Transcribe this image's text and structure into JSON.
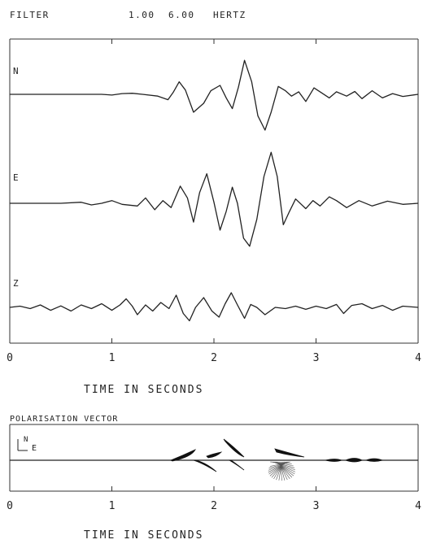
{
  "header": {
    "filter_label": "FILTER",
    "low_freq": "1.00",
    "high_freq": "6.00",
    "unit": "HERTZ"
  },
  "chart_data": [
    {
      "type": "line",
      "title": "",
      "xlabel": "TIME IN SECONDS",
      "ylabel": "",
      "xlim": [
        0,
        4
      ],
      "x_ticks": [
        "0",
        "1",
        "2",
        "3",
        "4"
      ],
      "grid": false,
      "series": [
        {
          "name": "N",
          "color": "#222222",
          "points": [
            [
              0.0,
              0.0
            ],
            [
              0.4,
              0.0
            ],
            [
              0.9,
              0.0
            ],
            [
              1.0,
              -0.02
            ],
            [
              1.1,
              0.02
            ],
            [
              1.2,
              0.03
            ],
            [
              1.3,
              0.0
            ],
            [
              1.45,
              -0.05
            ],
            [
              1.55,
              -0.15
            ],
            [
              1.6,
              0.05
            ],
            [
              1.66,
              0.35
            ],
            [
              1.72,
              0.12
            ],
            [
              1.8,
              -0.5
            ],
            [
              1.9,
              -0.25
            ],
            [
              1.97,
              0.1
            ],
            [
              2.06,
              0.25
            ],
            [
              2.12,
              -0.1
            ],
            [
              2.18,
              -0.4
            ],
            [
              2.24,
              0.2
            ],
            [
              2.3,
              0.95
            ],
            [
              2.37,
              0.35
            ],
            [
              2.43,
              -0.6
            ],
            [
              2.5,
              -1.0
            ],
            [
              2.56,
              -0.5
            ],
            [
              2.63,
              0.22
            ],
            [
              2.7,
              0.1
            ],
            [
              2.76,
              -0.05
            ],
            [
              2.83,
              0.07
            ],
            [
              2.9,
              -0.2
            ],
            [
              2.98,
              0.18
            ],
            [
              3.05,
              0.05
            ],
            [
              3.13,
              -0.1
            ],
            [
              3.2,
              0.07
            ],
            [
              3.3,
              -0.05
            ],
            [
              3.38,
              0.08
            ],
            [
              3.45,
              -0.12
            ],
            [
              3.55,
              0.1
            ],
            [
              3.65,
              -0.1
            ],
            [
              3.75,
              0.02
            ],
            [
              3.85,
              -0.06
            ],
            [
              4.0,
              0.0
            ]
          ]
        },
        {
          "name": "E",
          "color": "#222222",
          "points": [
            [
              0.0,
              0.0
            ],
            [
              0.5,
              0.0
            ],
            [
              0.7,
              0.02
            ],
            [
              0.8,
              -0.03
            ],
            [
              0.9,
              0.0
            ],
            [
              1.0,
              0.05
            ],
            [
              1.1,
              -0.02
            ],
            [
              1.25,
              -0.05
            ],
            [
              1.33,
              0.1
            ],
            [
              1.42,
              -0.12
            ],
            [
              1.5,
              0.05
            ],
            [
              1.58,
              -0.08
            ],
            [
              1.67,
              0.32
            ],
            [
              1.74,
              0.1
            ],
            [
              1.8,
              -0.35
            ],
            [
              1.86,
              0.2
            ],
            [
              1.93,
              0.55
            ],
            [
              2.0,
              0.02
            ],
            [
              2.06,
              -0.5
            ],
            [
              2.12,
              -0.15
            ],
            [
              2.18,
              0.3
            ],
            [
              2.23,
              0.0
            ],
            [
              2.29,
              -0.65
            ],
            [
              2.35,
              -0.8
            ],
            [
              2.42,
              -0.3
            ],
            [
              2.49,
              0.5
            ],
            [
              2.56,
              0.95
            ],
            [
              2.62,
              0.5
            ],
            [
              2.68,
              -0.4
            ],
            [
              2.74,
              -0.15
            ],
            [
              2.8,
              0.08
            ],
            [
              2.9,
              -0.1
            ],
            [
              2.97,
              0.05
            ],
            [
              3.04,
              -0.05
            ],
            [
              3.13,
              0.12
            ],
            [
              3.2,
              0.05
            ],
            [
              3.3,
              -0.08
            ],
            [
              3.42,
              0.05
            ],
            [
              3.55,
              -0.05
            ],
            [
              3.7,
              0.04
            ],
            [
              3.85,
              -0.02
            ],
            [
              4.0,
              0.0
            ]
          ]
        },
        {
          "name": "Z",
          "color": "#222222",
          "points": [
            [
              0.0,
              0.0
            ],
            [
              0.1,
              0.05
            ],
            [
              0.2,
              -0.05
            ],
            [
              0.3,
              0.1
            ],
            [
              0.4,
              -0.12
            ],
            [
              0.5,
              0.06
            ],
            [
              0.6,
              -0.15
            ],
            [
              0.7,
              0.1
            ],
            [
              0.8,
              -0.05
            ],
            [
              0.9,
              0.15
            ],
            [
              1.0,
              -0.12
            ],
            [
              1.08,
              0.1
            ],
            [
              1.14,
              0.35
            ],
            [
              1.2,
              0.05
            ],
            [
              1.25,
              -0.3
            ],
            [
              1.33,
              0.1
            ],
            [
              1.4,
              -0.15
            ],
            [
              1.48,
              0.2
            ],
            [
              1.56,
              -0.05
            ],
            [
              1.63,
              0.5
            ],
            [
              1.7,
              -0.25
            ],
            [
              1.76,
              -0.55
            ],
            [
              1.82,
              0.0
            ],
            [
              1.9,
              0.4
            ],
            [
              1.98,
              -0.15
            ],
            [
              2.05,
              -0.4
            ],
            [
              2.11,
              0.15
            ],
            [
              2.17,
              0.6
            ],
            [
              2.23,
              0.1
            ],
            [
              2.3,
              -0.45
            ],
            [
              2.36,
              0.12
            ],
            [
              2.42,
              0.0
            ],
            [
              2.5,
              -0.3
            ],
            [
              2.6,
              0.0
            ],
            [
              2.7,
              -0.05
            ],
            [
              2.8,
              0.05
            ],
            [
              2.9,
              -0.08
            ],
            [
              3.0,
              0.05
            ],
            [
              3.1,
              -0.05
            ],
            [
              3.2,
              0.12
            ],
            [
              3.27,
              -0.25
            ],
            [
              3.35,
              0.08
            ],
            [
              3.45,
              0.15
            ],
            [
              3.55,
              -0.05
            ],
            [
              3.65,
              0.08
            ],
            [
              3.75,
              -0.12
            ],
            [
              3.85,
              0.05
            ],
            [
              4.0,
              0.0
            ]
          ]
        }
      ]
    },
    {
      "type": "line",
      "title": "POLARISATION VECTOR",
      "xlabel": "TIME IN SECONDS",
      "xlim": [
        0,
        4
      ],
      "x_ticks": [
        "0",
        "1",
        "2",
        "3",
        "4"
      ],
      "grid": false,
      "compass": {
        "north": "N",
        "east": "E"
      }
    }
  ]
}
